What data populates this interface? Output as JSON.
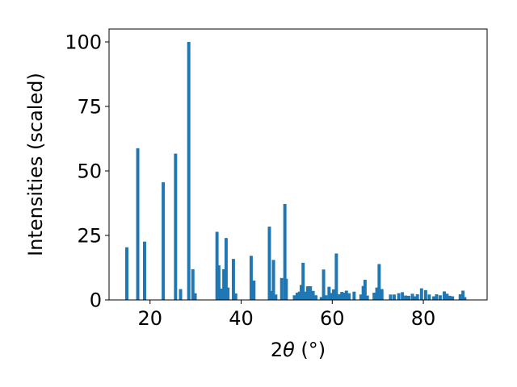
{
  "chart_data": {
    "type": "bar",
    "xlabel_prefix": "2",
    "xlabel_theta": "θ",
    "xlabel_unit": " (°)",
    "ylabel": "Intensities (scaled)",
    "xlim": [
      11,
      94
    ],
    "ylim": [
      0,
      105
    ],
    "xticks": [
      20,
      40,
      60,
      80
    ],
    "yticks": [
      0,
      25,
      50,
      75,
      100
    ],
    "bar_color": "#1f77b4",
    "bar_width": 0.7,
    "grid": false,
    "x": [
      14.9,
      17.3,
      18.8,
      22.9,
      25.6,
      26.7,
      28.5,
      29.4,
      29.9,
      34.7,
      35.1,
      35.6,
      36.2,
      36.7,
      37.1,
      38.3,
      38.8,
      42.2,
      42.8,
      46.2,
      46.7,
      47.1,
      47.6,
      48.9,
      49.6,
      49.9,
      51.7,
      52.3,
      52.8,
      53.2,
      53.6,
      54.1,
      54.6,
      55.2,
      55.8,
      56.4,
      57.6,
      58.1,
      58.6,
      59.3,
      59.8,
      60.3,
      60.9,
      61.5,
      62.1,
      62.7,
      63.1,
      63.7,
      64.8,
      66.3,
      66.8,
      67.2,
      67.7,
      69.2,
      69.8,
      70.3,
      70.9,
      72.8,
      73.6,
      74.6,
      75.4,
      76.1,
      76.8,
      77.6,
      78.3,
      78.7,
      79.6,
      80.5,
      81.3,
      82.3,
      82.9,
      83.7,
      84.6,
      85.2,
      85.8,
      86.4,
      88.1,
      88.7,
      89.1
    ],
    "values": [
      20.4,
      58.8,
      22.6,
      45.6,
      56.7,
      4.2,
      100,
      11.9,
      2.6,
      26.4,
      13.4,
      4.4,
      11.9,
      24,
      4.8,
      15.9,
      2.5,
      17.1,
      7.5,
      28.4,
      3.5,
      15.5,
      2.1,
      8.5,
      37.2,
      8.2,
      1.8,
      2.8,
      3.2,
      5.8,
      14.4,
      3.2,
      5.3,
      5.3,
      3.5,
      1.8,
      1.1,
      11.8,
      1.8,
      5.1,
      2.7,
      4.1,
      18,
      2.2,
      3.1,
      2.8,
      3.6,
      2.6,
      3.2,
      2.1,
      5.4,
      7.8,
      1.7,
      2.8,
      4.8,
      13.9,
      4.2,
      2.1,
      2.1,
      2.6,
      3,
      1.7,
      1.6,
      2.4,
      1.4,
      2.2,
      4.5,
      3.8,
      2.1,
      1.4,
      2.2,
      1.8,
      3.3,
      2.4,
      1.6,
      1.4,
      2.2,
      3.6,
      1.1
    ]
  }
}
